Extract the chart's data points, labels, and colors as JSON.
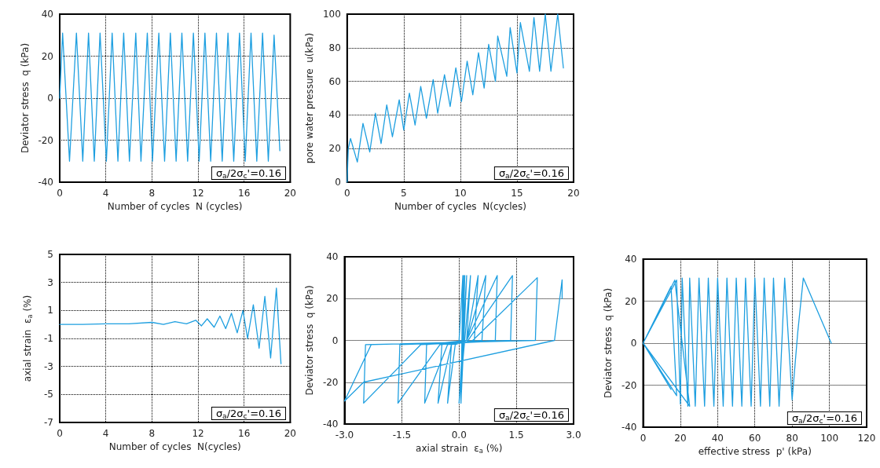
{
  "chart_data": [
    {
      "type": "line",
      "xlabel": "Number of cycles  N (cycles)",
      "ylabel": "Deviator stress  q (kPa)",
      "xlim": [
        0,
        20
      ],
      "ylim": [
        -40,
        40
      ],
      "xticks": [
        0,
        4,
        8,
        12,
        16,
        20
      ],
      "yticks": [
        -40,
        -20,
        0,
        20,
        40
      ],
      "grid": true,
      "marker": "none",
      "line_style": "solid",
      "color": "#1e9fe0",
      "annotations": [
        "σ$_{a}$/2σ$_{c}$'=0.16"
      ],
      "x": [
        0,
        0.25,
        0.85,
        1.45,
        2.0,
        2.5,
        3.0,
        3.5,
        4.05,
        4.55,
        5.05,
        5.55,
        6.05,
        6.6,
        7.05,
        7.6,
        8.05,
        8.6,
        9.1,
        9.6,
        10.1,
        10.6,
        11.1,
        11.6,
        12.1,
        12.6,
        13.1,
        13.6,
        14.1,
        14.6,
        15.1,
        15.6,
        16.1,
        16.6,
        17.1,
        17.6,
        18.1,
        18.6,
        19.1
      ],
      "values": [
        0,
        31,
        -30,
        31,
        -30,
        31,
        -30,
        31,
        -30,
        31,
        -30,
        31,
        -30,
        31,
        -30,
        31,
        -30,
        31,
        -30,
        31,
        -30,
        31,
        -30,
        31,
        -30,
        31,
        -30,
        31,
        -30,
        31,
        -30,
        31,
        -30,
        31,
        -30,
        31,
        -30,
        30,
        -25
      ]
    },
    {
      "type": "line",
      "xlabel": "Number of cycles  N(cycles)",
      "ylabel": "pore water pressure  u(kPa)",
      "xlim": [
        0,
        20
      ],
      "ylim": [
        0,
        100
      ],
      "xticks": [
        0,
        5,
        10,
        15,
        20
      ],
      "yticks": [
        0,
        20,
        40,
        60,
        80,
        100
      ],
      "grid": true,
      "marker": "none",
      "line_style": "solid",
      "color": "#1e9fe0",
      "annotations": [
        "σ$_{a}$/2σ$_{c}$'=0.16"
      ],
      "x": [
        0,
        0.1,
        0.3,
        0.9,
        1.4,
        2.0,
        2.5,
        3.0,
        3.5,
        4.0,
        4.6,
        5.0,
        5.5,
        6.0,
        6.5,
        7.0,
        7.6,
        8.0,
        8.6,
        9.1,
        9.6,
        10.1,
        10.6,
        11.1,
        11.6,
        12.1,
        12.5,
        13.1,
        13.3,
        14.1,
        14.4,
        15.0,
        15.3,
        16.1,
        16.5,
        17.0,
        17.5,
        18.0,
        18.6,
        19.1
      ],
      "values": [
        0,
        20,
        26,
        12,
        35,
        18,
        41,
        23,
        46,
        27,
        49,
        31,
        53,
        34,
        57,
        38,
        61,
        41,
        64,
        45,
        68,
        48,
        72,
        52,
        77,
        56,
        82,
        60,
        87,
        63,
        92,
        65,
        95,
        66,
        98,
        66,
        100,
        66,
        100,
        68
      ]
    },
    {
      "type": "line",
      "xlabel": "Number of cycles  N(cycles)",
      "ylabel": "axial strain  ε$_{a}$ (%)",
      "xlim": [
        0,
        20
      ],
      "ylim": [
        -7,
        5
      ],
      "xticks": [
        0,
        4,
        8,
        12,
        16,
        20
      ],
      "yticks": [
        -7,
        -5,
        -3,
        -1,
        1,
        3,
        5
      ],
      "grid": true,
      "marker": "none",
      "line_style": "solid",
      "color": "#1e9fe0",
      "annotations": [
        "σ$_{a}$/2σ$_{c}$'=0.16"
      ],
      "x": [
        0,
        2,
        4,
        6,
        8,
        9,
        10,
        11,
        11.8,
        12.3,
        12.8,
        13.4,
        13.9,
        14.4,
        14.9,
        15.4,
        15.9,
        16.3,
        16.8,
        17.3,
        17.8,
        18.3,
        18.8,
        19.2
      ],
      "values": [
        0,
        0,
        0.05,
        0.05,
        0.15,
        0,
        0.2,
        0.05,
        0.3,
        -0.1,
        0.4,
        -0.2,
        0.6,
        -0.3,
        0.8,
        -0.6,
        1.0,
        -1.0,
        1.4,
        -1.7,
        2.0,
        -2.4,
        2.6,
        -2.8
      ]
    },
    {
      "type": "line",
      "xlabel": "axial strain  ε$_{a}$ (%)",
      "ylabel": "Deviator stress  q (kPa)",
      "xlim": [
        -3,
        3
      ],
      "ylim": [
        -40,
        40
      ],
      "xticks": [
        {
          "value": -3,
          "label": "-3.0"
        },
        {
          "value": -1.5,
          "label": "-1.5"
        },
        {
          "value": 0,
          "label": "0.0"
        },
        {
          "value": 1.5,
          "label": "1.5"
        },
        {
          "value": 3,
          "label": "3.0"
        }
      ],
      "yticks": [
        -40,
        -20,
        0,
        20,
        40
      ],
      "grid": true,
      "marker": "none",
      "line_style": "solid",
      "color": "#1e9fe0",
      "annotations": [
        "σ$_{a}$/2σ$_{c}$'=0.16"
      ],
      "x": [
        0,
        0.1,
        0.05,
        0.12,
        0.05,
        0.15,
        0.05,
        0.2,
        0,
        0.3,
        0.2,
        -0.1,
        -0.3,
        -0.2,
        0.2,
        0.5,
        0.4,
        -0.2,
        -0.55,
        -0.45,
        0.2,
        0.7,
        0.6,
        -0.3,
        -0.9,
        -0.85,
        0.2,
        1.0,
        0.95,
        -0.5,
        -1.6,
        -1.55,
        0.2,
        1.4,
        1.35,
        -1.0,
        -2.5,
        -2.45,
        0.3,
        2.05,
        2.0,
        -2.3,
        -3.0,
        -2.5,
        2.5,
        2.7,
        2.7
      ],
      "values": [
        0,
        31,
        -30,
        31,
        -30,
        31,
        -30,
        31,
        -30,
        31,
        0,
        -2,
        -30,
        -2,
        0,
        31,
        0,
        -2,
        -30,
        -2,
        0,
        31,
        0,
        -2,
        -30,
        -2,
        0,
        31,
        0,
        -2,
        -30,
        -2,
        -1,
        31,
        0,
        -2,
        -30,
        -2,
        -1,
        30,
        0,
        -2,
        -29,
        -20,
        0,
        29,
        20
      ]
    },
    {
      "type": "line",
      "xlabel": "effective stress  p' (kPa)",
      "ylabel": "Deviator stress  q (kPa)",
      "xlim": [
        0,
        120
      ],
      "ylim": [
        -40,
        40
      ],
      "xticks": [
        0,
        20,
        40,
        60,
        80,
        100,
        120
      ],
      "yticks": [
        -40,
        -20,
        0,
        20,
        40
      ],
      "grid": true,
      "marker": "none",
      "line_style": "solid",
      "color": "#1e9fe0",
      "annotations": [
        "σ$_{a}$/2σ$_{c}$'=0.16"
      ],
      "x": [
        101,
        86,
        83,
        80,
        76,
        73,
        70,
        68,
        65,
        63,
        60,
        58,
        55,
        53,
        50,
        48,
        45,
        43,
        40,
        38,
        35,
        33,
        30,
        28,
        25,
        24,
        21,
        20,
        18,
        0,
        25,
        17,
        0,
        18,
        15,
        0,
        15
      ],
      "values": [
        0,
        31,
        5,
        -27,
        31,
        -30,
        31,
        -30,
        31,
        -30,
        31,
        -30,
        31,
        -30,
        31,
        -30,
        31,
        -30,
        31,
        -30,
        31,
        -30,
        31,
        -30,
        31,
        -30,
        31,
        -29,
        30,
        0,
        -30,
        30,
        0,
        -25,
        27,
        0,
        -22
      ]
    }
  ]
}
